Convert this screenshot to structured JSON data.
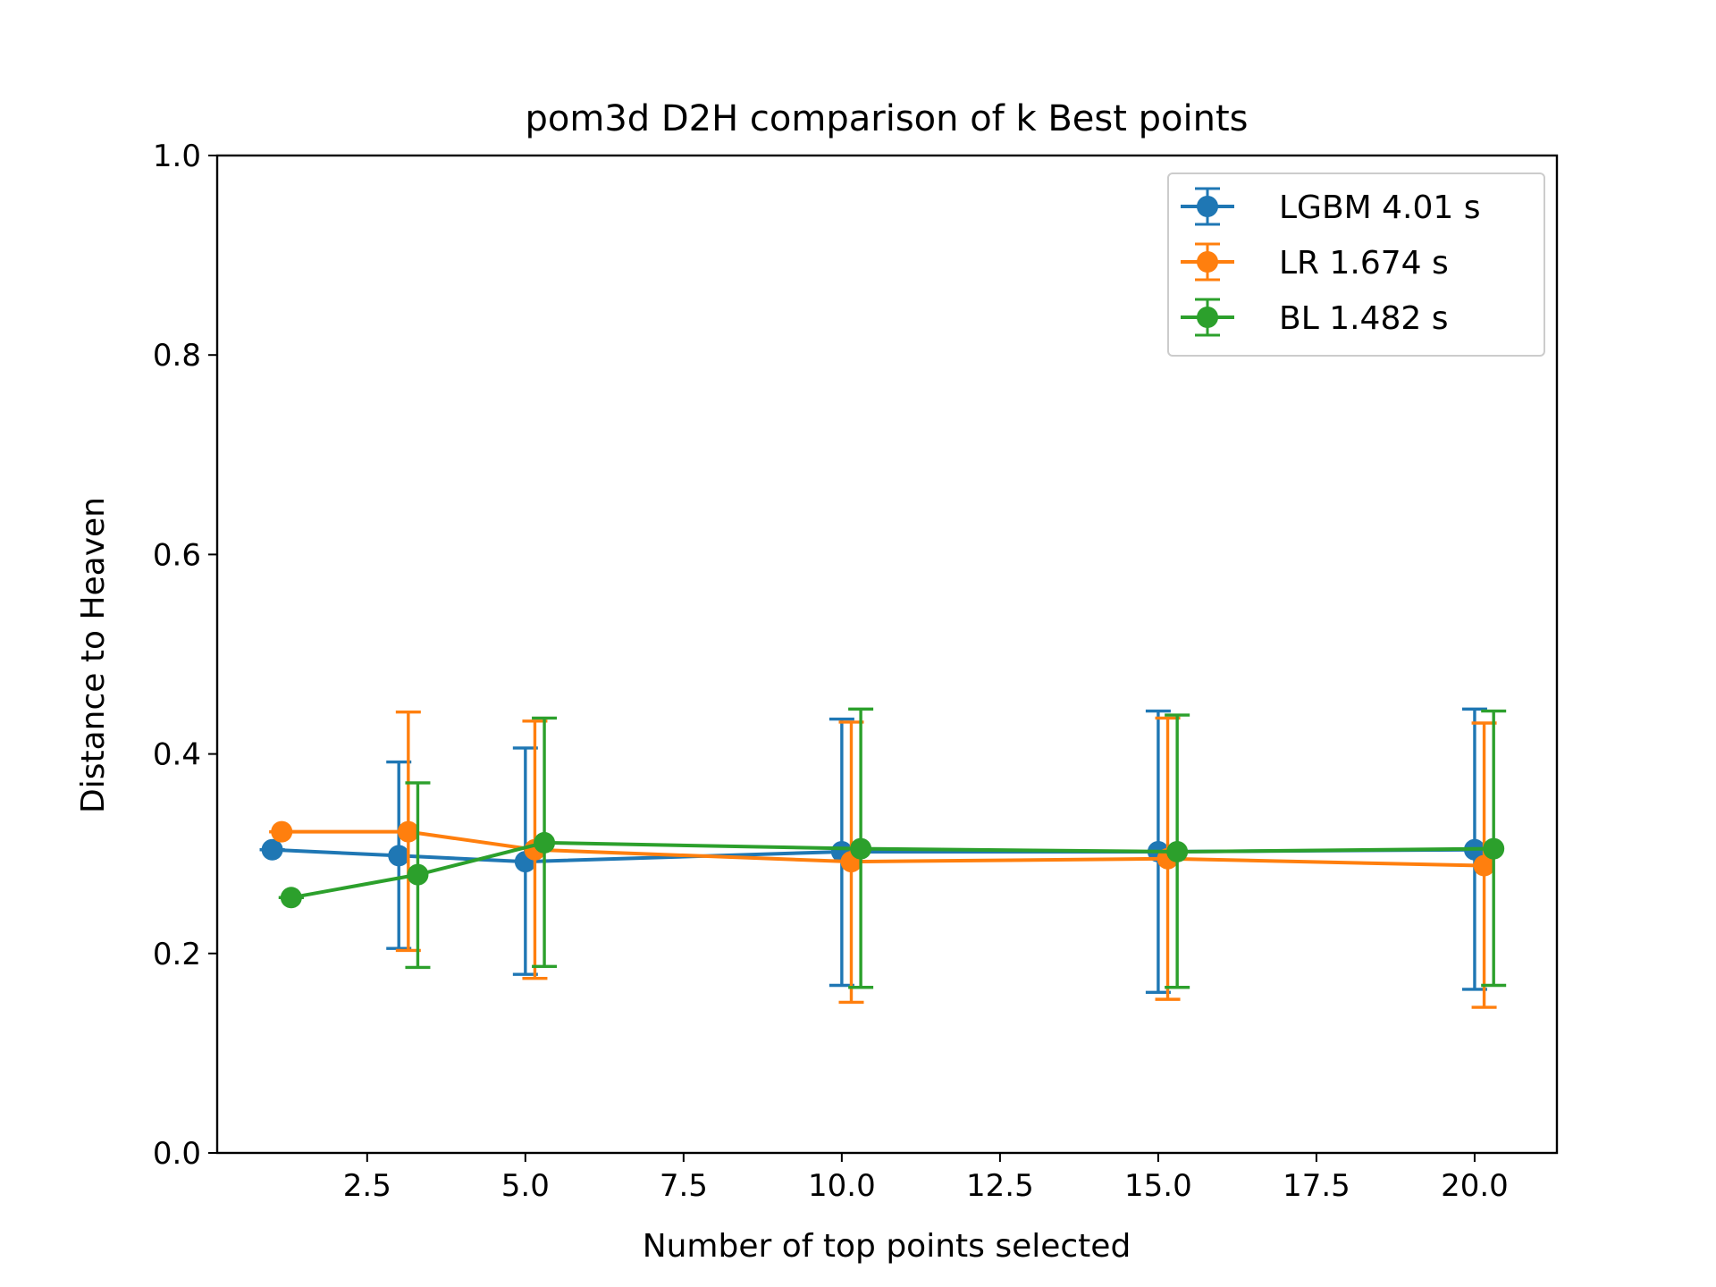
{
  "chart_data": {
    "type": "line",
    "title": "pom3d D2H comparison of k Best points",
    "xlabel": "Number of top points selected",
    "ylabel": "Distance to Heaven",
    "xlim": [
      0.13,
      21.3
    ],
    "ylim": [
      0.0,
      1.0
    ],
    "xticks": [
      2.5,
      5.0,
      7.5,
      10.0,
      12.5,
      15.0,
      17.5,
      20.0
    ],
    "xtick_labels": [
      "2.5",
      "5.0",
      "7.5",
      "10.0",
      "12.5",
      "15.0",
      "17.5",
      "20.0"
    ],
    "yticks": [
      0.0,
      0.2,
      0.4,
      0.6,
      0.8,
      1.0
    ],
    "ytick_labels": [
      "0.0",
      "0.2",
      "0.4",
      "0.6",
      "0.8",
      "1.0"
    ],
    "grid": false,
    "legend_position": "upper right",
    "series": [
      {
        "name": "LGBM 4.01 s",
        "color": "#1f77b4",
        "x": [
          1.0,
          3.0,
          5.0,
          10.0,
          15.0,
          20.0
        ],
        "y": [
          0.304,
          0.298,
          0.292,
          0.302,
          0.302,
          0.304
        ],
        "err_low": [
          0.304,
          0.205,
          0.179,
          0.168,
          0.161,
          0.164
        ],
        "err_high": [
          0.304,
          0.392,
          0.406,
          0.435,
          0.443,
          0.445
        ]
      },
      {
        "name": "LR 1.674 s",
        "color": "#ff7f0e",
        "x": [
          1.15,
          3.15,
          5.15,
          10.15,
          15.15,
          20.15
        ],
        "y": [
          0.322,
          0.322,
          0.304,
          0.292,
          0.295,
          0.288
        ],
        "err_low": [
          0.322,
          0.203,
          0.175,
          0.151,
          0.154,
          0.146
        ],
        "err_high": [
          0.322,
          0.442,
          0.433,
          0.432,
          0.436,
          0.431
        ]
      },
      {
        "name": "BL 1.482 s",
        "color": "#2ca02c",
        "x": [
          1.3,
          3.3,
          5.3,
          10.3,
          15.3,
          20.3
        ],
        "y": [
          0.256,
          0.279,
          0.311,
          0.305,
          0.302,
          0.305
        ],
        "err_low": [
          0.256,
          0.186,
          0.187,
          0.166,
          0.166,
          0.168
        ],
        "err_high": [
          0.256,
          0.371,
          0.436,
          0.445,
          0.439,
          0.443
        ]
      }
    ]
  }
}
